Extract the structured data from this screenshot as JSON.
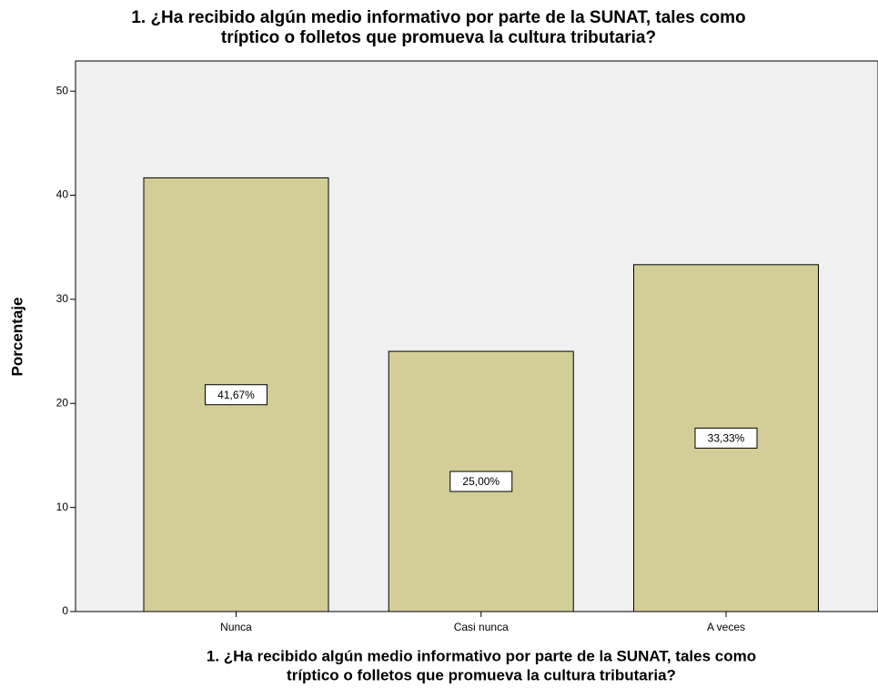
{
  "chart_data": {
    "type": "bar",
    "title": [
      "1. ¿Ha recibido algún medio informativo por parte de la SUNAT, tales como",
      "tríptico o folletos que promueva la cultura tributaria?"
    ],
    "x_label": [
      "1. ¿Ha recibido algún medio informativo por parte de la SUNAT, tales como",
      "tríptico o folletos que promueva la cultura tributaria?"
    ],
    "y_label": "Porcentaje",
    "categories": [
      "Nunca",
      "Casi nunca",
      "A veces"
    ],
    "values": [
      41.67,
      25.0,
      33.33
    ],
    "value_labels": [
      "41,67%",
      "25,00%",
      "33,33%"
    ],
    "color": "#d3ce97",
    "ylim": [
      0,
      52.9
    ],
    "yticks": [
      0,
      10,
      20,
      30,
      40,
      50
    ],
    "grid": false
  }
}
